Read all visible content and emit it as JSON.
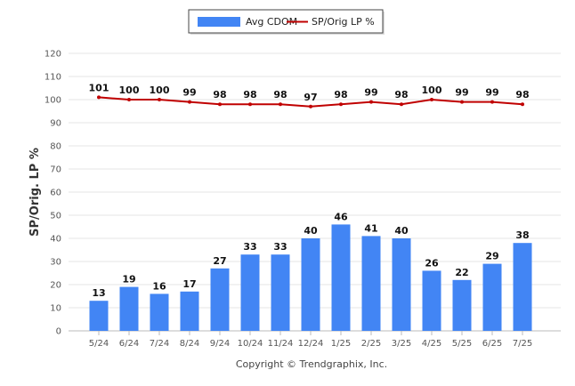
{
  "chart_data": {
    "type": "bar",
    "categories": [
      "5/24",
      "6/24",
      "7/24",
      "8/24",
      "9/24",
      "10/24",
      "11/24",
      "12/24",
      "1/25",
      "2/25",
      "3/25",
      "4/25",
      "5/25",
      "6/25",
      "7/25"
    ],
    "series": [
      {
        "name": "Avg CDOM",
        "type": "bar",
        "color": "#4285f4",
        "values": [
          13,
          19,
          16,
          17,
          27,
          33,
          33,
          40,
          46,
          41,
          40,
          26,
          22,
          29,
          38
        ]
      },
      {
        "name": "SP/Orig LP %",
        "type": "line",
        "color": "#c00000",
        "values": [
          101,
          100,
          100,
          99,
          98,
          98,
          98,
          97,
          98,
          99,
          98,
          100,
          99,
          99,
          98
        ]
      }
    ],
    "xlabel": "",
    "ylabel": "SP/Orig. LP %",
    "ylim": [
      0,
      120
    ],
    "yticks": [
      0,
      10,
      20,
      30,
      40,
      50,
      60,
      70,
      80,
      90,
      100,
      110,
      120
    ],
    "grid": true,
    "legend_position": "top-center"
  },
  "footer": "Copyright © Trendgraphix, Inc."
}
